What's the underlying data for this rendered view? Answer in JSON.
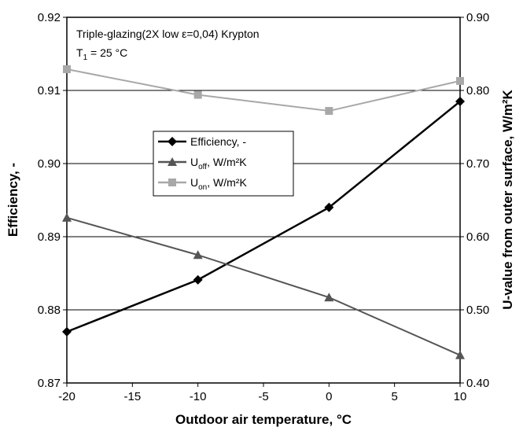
{
  "chart_data": {
    "type": "line",
    "x": [
      -20,
      -10,
      0,
      10
    ],
    "xlabel": "Outdoor air temperature, °C",
    "xlim": [
      -20,
      10
    ],
    "xticks": [
      "-20",
      "-15",
      "-10",
      "-5",
      "0",
      "5",
      "10"
    ],
    "ylabel": "Efficiency, -",
    "ylim": [
      0.87,
      0.92
    ],
    "yticks": [
      "0.87",
      "0.88",
      "0.89",
      "0.90",
      "0.91",
      "0.92"
    ],
    "y2label": "U-value from outer surface, W/m²K",
    "y2lim": [
      0.4,
      0.9
    ],
    "y2ticks": [
      "0.40",
      "0.50",
      "0.60",
      "0.70",
      "0.80",
      "0.90"
    ],
    "grid": "horizontal",
    "legend_position": "center-left",
    "annotations": {
      "line1": "Triple-glazing(2X low ε=0,04) Krypton",
      "line2_main": "T",
      "line2_sub": "1",
      "line2_rest": " = 25 °C"
    },
    "series": [
      {
        "name": "Efficiency, -",
        "axis": "left",
        "marker": "diamond",
        "color": "#000000",
        "values": [
          0.877,
          0.8841,
          0.894,
          0.9085
        ]
      },
      {
        "name_main": "U",
        "name_sub": "off",
        "name_rest": ", W/m²K",
        "axis": "right",
        "marker": "triangle",
        "color": "#555555",
        "values": [
          0.626,
          0.575,
          0.517,
          0.438
        ]
      },
      {
        "name_main": "U",
        "name_sub": "on",
        "name_rest": ", W/m²K",
        "axis": "right",
        "marker": "square",
        "color": "#a8a8a8",
        "values": [
          0.829,
          0.794,
          0.772,
          0.813
        ]
      }
    ]
  }
}
